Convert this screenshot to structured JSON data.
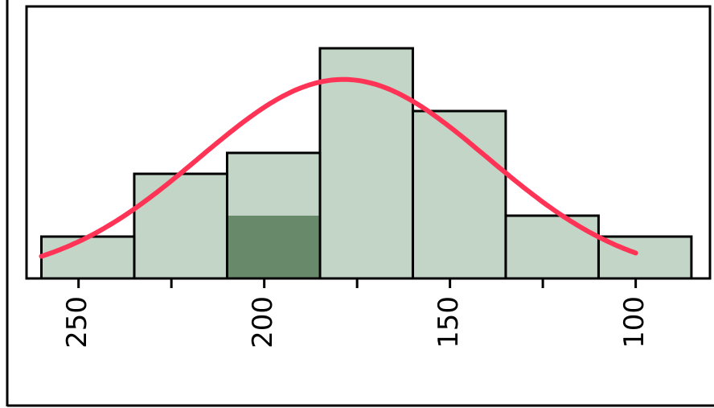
{
  "chart_data": {
    "type": "histogram",
    "bins": [
      85,
      110,
      135,
      160,
      185,
      210,
      235,
      260
    ],
    "counts": [
      2,
      3,
      8,
      11,
      6,
      5,
      2
    ],
    "highlight_counts": [
      0,
      0,
      0,
      0,
      3,
      0,
      0
    ],
    "color": "#c2d5c6",
    "highlight_color": "#688a6a",
    "xlim": [
      264,
      80
    ],
    "ylim": [
      0,
      13
    ],
    "xticks": [
      250,
      200,
      150,
      100
    ],
    "xminor_ticks": [
      225,
      175,
      125
    ],
    "normal_fit": {
      "mean": 178.7,
      "sd": 38.8,
      "range": [
        100,
        260
      ],
      "color": "#ff3355"
    }
  }
}
